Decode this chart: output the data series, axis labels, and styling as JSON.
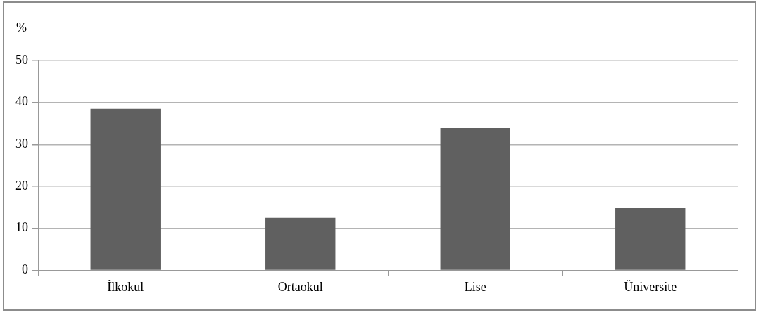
{
  "chart_data": {
    "type": "bar",
    "ylabel": "%",
    "categories": [
      "İlkokul",
      "Ortaokul",
      "Lise",
      "Üniversite"
    ],
    "values": [
      38.5,
      12.5,
      33.9,
      14.8
    ],
    "color": "#606060",
    "ylim": [
      0,
      50
    ],
    "yticks": [
      0,
      10,
      20,
      30,
      40,
      50
    ],
    "grid": "y",
    "legend": false
  }
}
